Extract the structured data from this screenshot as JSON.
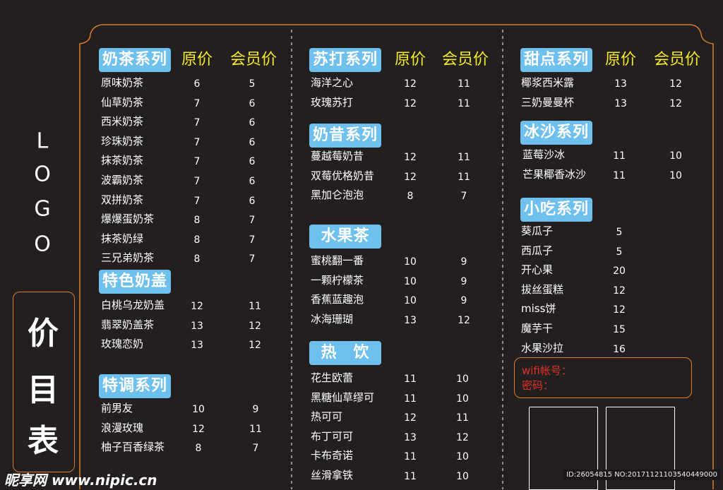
{
  "logo_text": [
    "L",
    "O",
    "G",
    "O"
  ],
  "title_chars": [
    "价",
    "目",
    "表"
  ],
  "price_header": "原价",
  "member_header": "会员价",
  "sections": [
    {
      "name": "奶茶系列",
      "show_headers": true,
      "items": [
        [
          "原味奶茶",
          "6",
          "5"
        ],
        [
          "仙草奶茶",
          "7",
          "6"
        ],
        [
          "西米奶茶",
          "7",
          "6"
        ],
        [
          "珍珠奶茶",
          "7",
          "6"
        ],
        [
          "抹茶奶茶",
          "7",
          "6"
        ],
        [
          "波霸奶茶",
          "7",
          "6"
        ],
        [
          "双拼奶茶",
          "7",
          "6"
        ],
        [
          "爆爆蛋奶茶",
          "8",
          "7"
        ],
        [
          "抹茶奶绿",
          "8",
          "7"
        ],
        [
          "三兄弟奶茶",
          "8",
          "7"
        ]
      ]
    },
    {
      "name": "特色奶盖",
      "show_headers": false,
      "items": [
        [
          "白桃乌龙奶盖",
          "12",
          "11"
        ],
        [
          "翡翠奶盖茶",
          "13",
          "12"
        ],
        [
          "玫瑰恋奶",
          "13",
          "12"
        ]
      ]
    },
    {
      "name": "特调系列",
      "show_headers": false,
      "items": [
        [
          "前男友",
          "10",
          "9"
        ],
        [
          "浪漫玫瑰",
          "12",
          "11"
        ],
        [
          "柚子百香绿茶",
          "8",
          "7"
        ]
      ]
    },
    {
      "name": "苏打系列",
      "show_headers": true,
      "items": [
        [
          "海洋之心",
          "12",
          "11"
        ],
        [
          "玫瑰苏打",
          "12",
          "11"
        ]
      ]
    },
    {
      "name": "奶昔系列",
      "show_headers": false,
      "items": [
        [
          "蔓越莓奶昔",
          "12",
          "11"
        ],
        [
          "双莓优格奶昔",
          "12",
          "11"
        ],
        [
          "黑加仑泡泡",
          "8",
          "7"
        ]
      ]
    },
    {
      "name": "水果茶",
      "show_headers": false,
      "items": [
        [
          "蜜桃翻一番",
          "10",
          "9"
        ],
        [
          "一颗柠檬茶",
          "10",
          "9"
        ],
        [
          "香蕉蓝趣泡",
          "10",
          "9"
        ],
        [
          "冰海珊瑚",
          "13",
          "12"
        ]
      ]
    },
    {
      "name": "热　饮",
      "show_headers": false,
      "items": [
        [
          "花生欧蕾",
          "11",
          "10"
        ],
        [
          "黑糖仙草缪可",
          "11",
          "10"
        ],
        [
          "热可可",
          "12",
          "11"
        ],
        [
          "布丁可可",
          "13",
          "12"
        ],
        [
          "卡布奇诺",
          "11",
          "10"
        ],
        [
          "丝滑拿铁",
          "11",
          "10"
        ]
      ]
    },
    {
      "name": "甜点系列",
      "show_headers": true,
      "items": [
        [
          "椰浆西米露",
          "13",
          "12"
        ],
        [
          "三奶曼曼杯",
          "13",
          "12"
        ]
      ]
    },
    {
      "name": "冰沙系列",
      "show_headers": false,
      "items": [
        [
          "蓝莓沙冰",
          "11",
          "10"
        ],
        [
          "芒果椰香冰沙",
          "11",
          "10"
        ]
      ]
    },
    {
      "name": "小吃系列",
      "show_headers": false,
      "items": [
        [
          "葵瓜子",
          "5",
          ""
        ],
        [
          "西瓜子",
          "5",
          ""
        ],
        [
          "开心果",
          "20",
          ""
        ],
        [
          "拔丝蛋糕",
          "12",
          ""
        ],
        [
          "miss饼",
          "12",
          ""
        ],
        [
          "魔芋干",
          "15",
          ""
        ],
        [
          "水果沙拉",
          "16",
          ""
        ]
      ]
    }
  ],
  "wifi": {
    "account_label": "wifi帐号：",
    "password_label": "密码："
  },
  "watermark": {
    "site": "昵享网 www.nipic.cn",
    "id": "ID:26054815 NO:20171121103540449000"
  },
  "colors": {
    "background": "#231f1e",
    "category": "#6ec0ee",
    "header": "#f4ec2a",
    "frame": "#d97b2a",
    "wifi_text": "#e0302a"
  }
}
